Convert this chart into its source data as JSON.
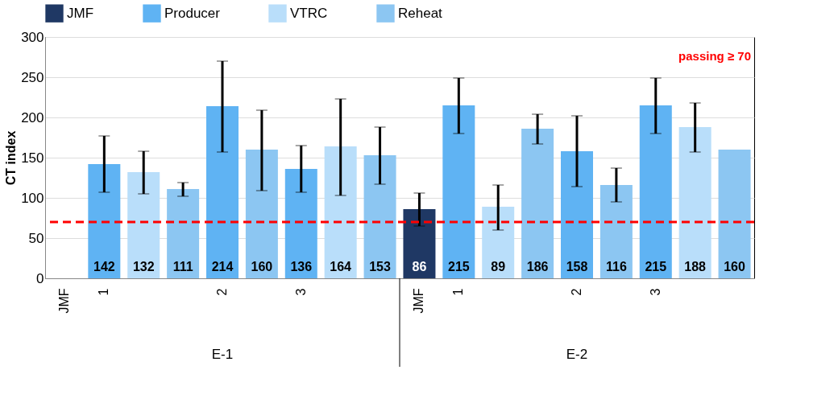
{
  "chart_data": {
    "type": "bar",
    "ylabel": "CT index",
    "categories": [
      "JMF",
      "1",
      null,
      null,
      "2",
      null,
      "3",
      null,
      null,
      "JMF",
      "1",
      null,
      null,
      "2",
      null,
      "3",
      null,
      null
    ],
    "series": [
      {
        "name": "JMF",
        "color": "#1f3864",
        "values": [
          null,
          null,
          null,
          null,
          null,
          null,
          null,
          null,
          null,
          86,
          null,
          null,
          null,
          null,
          null,
          null,
          null,
          null
        ],
        "errors": [
          null,
          null,
          null,
          null,
          null,
          null,
          null,
          null,
          null,
          [
            65,
            106
          ],
          null,
          null,
          null,
          null,
          null,
          null,
          null,
          null
        ]
      },
      {
        "name": "Producer",
        "color": "#5fb3f3",
        "values": [
          null,
          142,
          null,
          null,
          214,
          null,
          136,
          null,
          null,
          null,
          215,
          null,
          null,
          158,
          null,
          215,
          null,
          null
        ],
        "errors": [
          null,
          [
            107,
            177
          ],
          null,
          null,
          [
            157,
            270
          ],
          null,
          [
            107,
            165
          ],
          null,
          null,
          null,
          [
            180,
            249
          ],
          null,
          null,
          [
            114,
            202
          ],
          null,
          [
            180,
            249
          ],
          null,
          null
        ]
      },
      {
        "name": "VTRC",
        "color": "#b9defa",
        "values": [
          null,
          null,
          132,
          null,
          null,
          null,
          null,
          164,
          null,
          null,
          null,
          89,
          null,
          null,
          null,
          null,
          188,
          null
        ],
        "errors": [
          null,
          null,
          [
            105,
            158
          ],
          null,
          null,
          null,
          null,
          [
            103,
            223
          ],
          null,
          null,
          null,
          [
            60,
            116
          ],
          null,
          null,
          null,
          null,
          [
            157,
            218
          ],
          null
        ]
      },
      {
        "name": "Reheat",
        "color": "#8cc6f2",
        "values": [
          null,
          null,
          null,
          111,
          null,
          160,
          null,
          null,
          153,
          null,
          null,
          null,
          186,
          null,
          116,
          null,
          null,
          160
        ],
        "errors": [
          null,
          null,
          null,
          [
            102,
            119
          ],
          null,
          [
            109,
            209
          ],
          null,
          null,
          [
            117,
            188
          ],
          null,
          null,
          null,
          [
            167,
            204
          ],
          null,
          [
            95,
            137
          ],
          null,
          null,
          null
        ]
      }
    ],
    "ylim": [
      0,
      300
    ],
    "yticks": [
      0,
      50,
      100,
      150,
      200,
      250,
      300
    ],
    "grid": "y",
    "legend": "top",
    "data_labels": true,
    "ref_lines": [
      {
        "axis": "y",
        "value": 70,
        "label": "passing ≥ 70",
        "color": "#ff0000",
        "line_style": "dashed"
      }
    ],
    "annotations": [
      "E-1",
      "E-2"
    ]
  }
}
